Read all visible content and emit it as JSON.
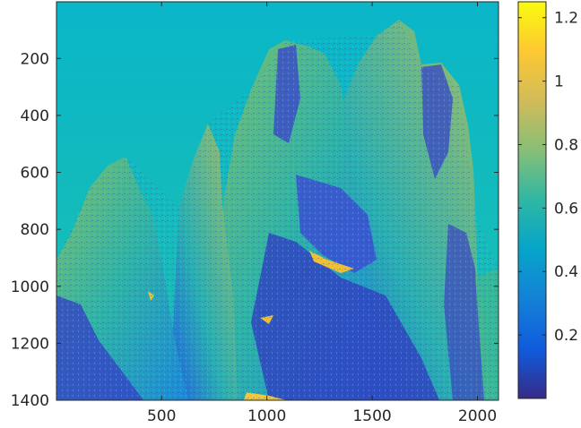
{
  "chart_data": {
    "type": "heatmap",
    "title": "",
    "xlabel": "",
    "ylabel": "",
    "x_range": [
      1,
      2100
    ],
    "y_range": [
      1,
      1400
    ],
    "y_direction": "reverse",
    "x_ticks": [
      500,
      1000,
      1500,
      2000
    ],
    "y_ticks": [
      200,
      400,
      600,
      800,
      1000,
      1200,
      1400
    ],
    "colormap": "parula",
    "colorbar": {
      "range": [
        0,
        1.25
      ],
      "ticks": [
        0.2,
        0.4,
        0.6,
        0.8,
        1,
        1.2
      ],
      "tick_labels": [
        "0.2",
        "0.4",
        "0.6",
        "0.8",
        "1",
        "1.2"
      ]
    },
    "image_content": "rocky mountain peaks (spire formations) against a uniform sky; sky value about 0.55, rock faces varying from about 0.05 to 1.2",
    "sky_value": 0.55
  },
  "colors": {
    "axis": "#262626",
    "parula_stops": [
      "#352a87",
      "#0f5cdd",
      "#1481d6",
      "#06a4ca",
      "#2eb7a4",
      "#87bf77",
      "#d1bb59",
      "#fec832",
      "#f9fb0e"
    ]
  }
}
